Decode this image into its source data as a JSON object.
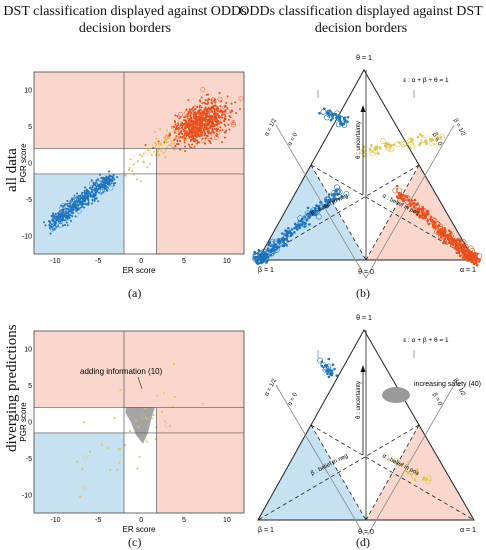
{
  "titles": {
    "col_left": "DST classification displayed against ODDs decision borders",
    "col_right": "ODDs classification displayed against DST decision borders"
  },
  "row_labels": {
    "top": "all data",
    "bottom": "diverging predictions"
  },
  "panel_labels": {
    "a": "(a)",
    "b": "(b)",
    "c": "(c)",
    "d": "(d)"
  },
  "colors": {
    "region_pos": "#f9d7cc",
    "region_neg": "#c6e2f2",
    "class_pos": "#e8501e",
    "class_neg": "#1f74be",
    "class_uncertain": "#e0c44c",
    "highlight": "#9a9a9a"
  },
  "chart_data": [
    {
      "id": "a",
      "type": "scatter",
      "xlabel": "ER score",
      "ylabel": "PGR score",
      "xlim": [
        -12.5,
        12
      ],
      "ylim": [
        -12.5,
        12.5
      ],
      "xticks": [
        -10,
        -5,
        0,
        5,
        10
      ],
      "yticks": [
        10,
        5,
        0,
        -5,
        -10
      ],
      "borders": {
        "x": [
          -2,
          1.8
        ],
        "y": [
          -1.5,
          2
        ]
      },
      "series": [
        {
          "class": "pos",
          "center": [
            7,
            5.5
          ],
          "spread": [
            1.6,
            2.2
          ],
          "count": 700
        },
        {
          "class": "neg",
          "line": [
            [
              -10.5,
              -8.5
            ],
            [
              -3.5,
              -2
            ]
          ],
          "spread": 0.8,
          "count": 500
        },
        {
          "class": "uncertain",
          "line": [
            [
              -1,
              -1
            ],
            [
              4,
              4
            ]
          ],
          "spread": 1.6,
          "count": 60
        }
      ]
    },
    {
      "id": "b",
      "type": "ternary",
      "legend": "ε : α + β + θ = 1",
      "vertex_labels": {
        "top": "θ = 1",
        "left": "β = 1",
        "right": "α = 1",
        "bottom": "θ = 0"
      },
      "axis_labels": {
        "uncertainty": "θ : uncertainty",
        "belief_neg": "β : belief in neg",
        "belief_pos": "α : belief in pos"
      },
      "side_labels": {
        "alpha_zero": "α = 0",
        "beta_zero": "β = 0",
        "alpha_half": "α = 1/2",
        "beta_half": "β = 1/2"
      },
      "series": [
        {
          "class": "neg",
          "count": 300
        },
        {
          "class": "pos",
          "count": 300
        },
        {
          "class": "uncertain",
          "count": 60
        }
      ]
    },
    {
      "id": "c",
      "type": "scatter",
      "xlabel": "ER score",
      "ylabel": "PGR score",
      "xlim": [
        -12.5,
        12
      ],
      "ylim": [
        -12.5,
        12.5
      ],
      "xticks": [
        -10,
        -5,
        0,
        5,
        10
      ],
      "yticks": [
        10,
        5,
        0,
        -5,
        -10
      ],
      "borders": {
        "x": [
          -2,
          1.8
        ],
        "y": [
          -1.5,
          2
        ]
      },
      "annotation": "adding information (10)",
      "series": [
        {
          "class": "uncertain",
          "count": 40
        }
      ]
    },
    {
      "id": "d",
      "type": "ternary",
      "legend": "ε : α + β + θ = 1",
      "vertex_labels": {
        "top": "θ = 1",
        "left": "β = 1",
        "right": "α = 1",
        "bottom": "θ = 0"
      },
      "axis_labels": {
        "uncertainty": "θ : uncertainty",
        "belief_neg": "β : belief in neg",
        "belief_pos": "α : belief in pos"
      },
      "side_labels": {
        "alpha_zero": "α = 0",
        "beta_zero": "β = 0",
        "alpha_half": "α = 1/2",
        "beta_half": "β = 1/2"
      },
      "annotation": "increasing safety (40)",
      "series": [
        {
          "class": "neg",
          "count": 30
        },
        {
          "class": "uncertain",
          "count": 20
        }
      ]
    }
  ]
}
